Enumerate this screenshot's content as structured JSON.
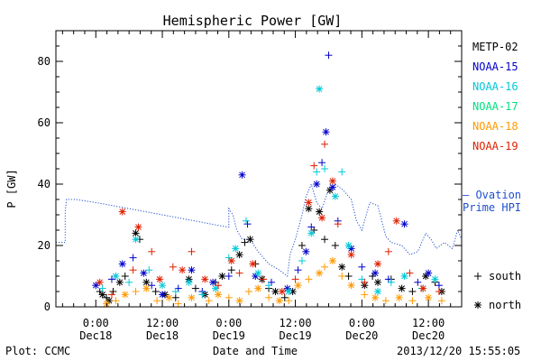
{
  "chart_data": {
    "type": "scatter",
    "title": "Hemispheric Power [GW]",
    "xlabel": "Date and Time",
    "ylabel": "P [GW]",
    "ylim": [
      0,
      90
    ],
    "xlim": [
      -0.3,
      2.75
    ],
    "yticks": [
      0,
      20,
      40,
      60,
      80
    ],
    "xticks": [
      {
        "x": 0.0,
        "time": "0:00",
        "day": "Dec18"
      },
      {
        "x": 0.5,
        "time": "12:00",
        "day": "Dec18"
      },
      {
        "x": 1.0,
        "time": "0:00",
        "day": "Dec19"
      },
      {
        "x": 1.5,
        "time": "12:00",
        "day": "Dec19"
      },
      {
        "x": 2.0,
        "time": "0:00",
        "day": "Dec20"
      },
      {
        "x": 2.5,
        "time": "12:00",
        "day": "Dec20"
      }
    ],
    "legend_position": "right",
    "symbol_legend": [
      {
        "symbol": "+",
        "label": "south"
      },
      {
        "symbol": "*",
        "label": "north"
      }
    ],
    "series": [
      {
        "name": "METP-02",
        "color": "#000000",
        "points": [
          [
            0.03,
            5,
            "+"
          ],
          [
            0.05,
            4,
            "*"
          ],
          [
            0.08,
            3,
            "+"
          ],
          [
            0.1,
            2,
            "*"
          ],
          [
            0.13,
            5,
            "+"
          ],
          [
            0.18,
            8,
            "*"
          ],
          [
            0.22,
            10,
            "+"
          ],
          [
            0.3,
            24,
            "*"
          ],
          [
            0.33,
            22,
            "+"
          ],
          [
            0.38,
            8,
            "*"
          ],
          [
            0.45,
            5,
            "+"
          ],
          [
            0.52,
            4,
            "*"
          ],
          [
            0.6,
            3,
            "+"
          ],
          [
            0.7,
            9,
            "*"
          ],
          [
            0.75,
            6,
            "+"
          ],
          [
            0.82,
            4,
            "*"
          ],
          [
            0.9,
            8,
            "+"
          ],
          [
            0.95,
            10,
            "*"
          ],
          [
            1.02,
            12,
            "+"
          ],
          [
            1.08,
            17,
            "*"
          ],
          [
            1.12,
            21,
            "+"
          ],
          [
            1.16,
            22,
            "*"
          ],
          [
            1.2,
            14,
            "+"
          ],
          [
            1.25,
            9,
            "*"
          ],
          [
            1.3,
            6,
            "+"
          ],
          [
            1.35,
            5,
            "*"
          ],
          [
            1.42,
            3,
            "+"
          ],
          [
            1.48,
            5,
            "*"
          ],
          [
            1.55,
            20,
            "+"
          ],
          [
            1.6,
            32,
            "*"
          ],
          [
            1.64,
            25,
            "+"
          ],
          [
            1.68,
            31,
            "*"
          ],
          [
            1.72,
            22,
            "+"
          ],
          [
            1.76,
            38,
            "*"
          ],
          [
            1.8,
            20,
            "+"
          ],
          [
            1.85,
            13,
            "*"
          ],
          [
            1.9,
            10,
            "+"
          ],
          [
            2.02,
            7,
            "*"
          ],
          [
            2.08,
            10,
            "+"
          ],
          [
            2.12,
            8,
            "*"
          ],
          [
            2.22,
            9,
            "+"
          ],
          [
            2.3,
            6,
            "*"
          ],
          [
            2.38,
            5,
            "+"
          ],
          [
            2.48,
            10,
            "*"
          ],
          [
            2.55,
            8,
            "+"
          ],
          [
            2.6,
            5,
            "*"
          ]
        ]
      },
      {
        "name": "NOAA-15",
        "color": "#0000cc",
        "points": [
          [
            0.0,
            7,
            "*"
          ],
          [
            0.12,
            9,
            "+"
          ],
          [
            0.2,
            14,
            "*"
          ],
          [
            0.28,
            16,
            "+"
          ],
          [
            0.36,
            11,
            "*"
          ],
          [
            0.42,
            7,
            "+"
          ],
          [
            0.5,
            4,
            "*"
          ],
          [
            0.62,
            6,
            "+"
          ],
          [
            0.72,
            12,
            "*"
          ],
          [
            0.8,
            5,
            "+"
          ],
          [
            0.88,
            8,
            "*"
          ],
          [
            1.0,
            10,
            "+"
          ],
          [
            1.1,
            43,
            "*"
          ],
          [
            1.14,
            27,
            "+"
          ],
          [
            1.2,
            10,
            "*"
          ],
          [
            1.32,
            8,
            "+"
          ],
          [
            1.44,
            6,
            "*"
          ],
          [
            1.52,
            12,
            "+"
          ],
          [
            1.58,
            18,
            "*"
          ],
          [
            1.62,
            26,
            "+"
          ],
          [
            1.66,
            40,
            "*"
          ],
          [
            1.7,
            47,
            "+"
          ],
          [
            1.73,
            57,
            "*"
          ],
          [
            1.75,
            82,
            "+"
          ],
          [
            1.78,
            39,
            "*"
          ],
          [
            1.82,
            28,
            "+"
          ],
          [
            1.92,
            19,
            "*"
          ],
          [
            2.0,
            13,
            "+"
          ],
          [
            2.1,
            11,
            "*"
          ],
          [
            2.2,
            9,
            "+"
          ],
          [
            2.32,
            27,
            "*"
          ],
          [
            2.42,
            8,
            "+"
          ],
          [
            2.5,
            11,
            "*"
          ],
          [
            2.58,
            7,
            "+"
          ]
        ]
      },
      {
        "name": "NOAA-16",
        "color": "#00c8d8",
        "points": [
          [
            0.05,
            6,
            "+"
          ],
          [
            0.15,
            10,
            "*"
          ],
          [
            0.25,
            8,
            "+"
          ],
          [
            0.3,
            22,
            "*"
          ],
          [
            0.4,
            12,
            "+"
          ],
          [
            0.5,
            7,
            "*"
          ],
          [
            0.6,
            5,
            "+"
          ],
          [
            0.7,
            8,
            "*"
          ],
          [
            0.8,
            4,
            "+"
          ],
          [
            0.9,
            6,
            "*"
          ],
          [
            1.0,
            16,
            "+"
          ],
          [
            1.05,
            19,
            "*"
          ],
          [
            1.13,
            28,
            "+"
          ],
          [
            1.22,
            11,
            "*"
          ],
          [
            1.3,
            7,
            "+"
          ],
          [
            1.45,
            5,
            "*"
          ],
          [
            1.55,
            15,
            "+"
          ],
          [
            1.62,
            24,
            "*"
          ],
          [
            1.66,
            44,
            "+"
          ],
          [
            1.68,
            71,
            "*"
          ],
          [
            1.72,
            45,
            "+"
          ],
          [
            1.8,
            36,
            "*"
          ],
          [
            1.85,
            44,
            "+"
          ],
          [
            1.9,
            20,
            "*"
          ],
          [
            2.0,
            9,
            "+"
          ],
          [
            2.12,
            5,
            "*"
          ],
          [
            2.22,
            8,
            "+"
          ],
          [
            2.32,
            10,
            "*"
          ],
          [
            2.45,
            6,
            "+"
          ],
          [
            2.55,
            9,
            "*"
          ]
        ]
      },
      {
        "name": "NOAA-17",
        "color": "#00e080",
        "points": []
      },
      {
        "name": "NOAA-18",
        "color": "#ff9900",
        "points": [
          [
            0.08,
            1,
            "*"
          ],
          [
            0.15,
            2,
            "+"
          ],
          [
            0.22,
            4,
            "*"
          ],
          [
            0.3,
            5,
            "+"
          ],
          [
            0.38,
            6,
            "*"
          ],
          [
            0.46,
            2,
            "+"
          ],
          [
            0.55,
            3,
            "*"
          ],
          [
            0.62,
            1,
            "+"
          ],
          [
            0.72,
            3,
            "*"
          ],
          [
            0.85,
            2,
            "+"
          ],
          [
            0.92,
            4,
            "*"
          ],
          [
            1.0,
            3,
            "+"
          ],
          [
            1.08,
            2,
            "*"
          ],
          [
            1.15,
            5,
            "+"
          ],
          [
            1.22,
            6,
            "*"
          ],
          [
            1.3,
            3,
            "+"
          ],
          [
            1.38,
            2,
            "*"
          ],
          [
            1.45,
            2,
            "+"
          ],
          [
            1.52,
            7,
            "*"
          ],
          [
            1.6,
            9,
            "+"
          ],
          [
            1.68,
            11,
            "*"
          ],
          [
            1.72,
            13,
            "+"
          ],
          [
            1.78,
            15,
            "*"
          ],
          [
            1.85,
            10,
            "+"
          ],
          [
            1.92,
            7,
            "*"
          ],
          [
            2.02,
            4,
            "+"
          ],
          [
            2.1,
            3,
            "*"
          ],
          [
            2.18,
            2,
            "+"
          ],
          [
            2.28,
            3,
            "*"
          ],
          [
            2.38,
            2,
            "+"
          ],
          [
            2.5,
            3,
            "*"
          ],
          [
            2.6,
            2,
            "+"
          ]
        ]
      },
      {
        "name": "NOAA-19",
        "color": "#e02000",
        "points": [
          [
            0.03,
            8,
            "*"
          ],
          [
            0.12,
            4,
            "+"
          ],
          [
            0.2,
            31,
            "*"
          ],
          [
            0.28,
            12,
            "+"
          ],
          [
            0.32,
            26,
            "*"
          ],
          [
            0.42,
            18,
            "+"
          ],
          [
            0.48,
            9,
            "*"
          ],
          [
            0.58,
            13,
            "+"
          ],
          [
            0.65,
            12,
            "*"
          ],
          [
            0.72,
            18,
            "+"
          ],
          [
            0.82,
            9,
            "*"
          ],
          [
            0.92,
            7,
            "+"
          ],
          [
            1.02,
            15,
            "*"
          ],
          [
            1.08,
            11,
            "+"
          ],
          [
            1.18,
            14,
            "*"
          ],
          [
            1.26,
            9,
            "+"
          ],
          [
            1.4,
            5,
            "*"
          ],
          [
            1.5,
            9,
            "+"
          ],
          [
            1.6,
            34,
            "*"
          ],
          [
            1.64,
            46,
            "+"
          ],
          [
            1.7,
            29,
            "*"
          ],
          [
            1.72,
            53,
            "+"
          ],
          [
            1.78,
            41,
            "*"
          ],
          [
            1.82,
            27,
            "+"
          ],
          [
            1.92,
            17,
            "*"
          ],
          [
            2.02,
            8,
            "+"
          ],
          [
            2.12,
            14,
            "*"
          ],
          [
            2.2,
            18,
            "+"
          ],
          [
            2.26,
            28,
            "*"
          ],
          [
            2.36,
            11,
            "+"
          ],
          [
            2.46,
            6,
            "*"
          ],
          [
            2.58,
            5,
            "+"
          ]
        ]
      },
      {
        "name": "Ovation Prime HPI",
        "label_lines": [
          "— Ovation",
          "Prime HPI"
        ],
        "color": "#2050d0",
        "style": "dotted-line",
        "points": [
          [
            -0.3,
            21
          ],
          [
            -0.23,
            21
          ],
          [
            -0.23,
            31
          ],
          [
            -0.22,
            35
          ],
          [
            -0.15,
            35
          ],
          [
            0.0,
            34
          ],
          [
            0.5,
            30
          ],
          [
            0.99,
            26
          ],
          [
            1.0,
            26
          ],
          [
            1.0,
            32
          ],
          [
            1.03,
            30
          ],
          [
            1.06,
            25
          ],
          [
            1.1,
            22
          ],
          [
            1.16,
            22
          ],
          [
            1.22,
            18
          ],
          [
            1.3,
            14
          ],
          [
            1.38,
            12
          ],
          [
            1.44,
            10
          ],
          [
            1.46,
            17
          ],
          [
            1.5,
            22
          ],
          [
            1.55,
            30
          ],
          [
            1.58,
            36
          ],
          [
            1.62,
            40
          ],
          [
            1.66,
            34
          ],
          [
            1.7,
            32
          ],
          [
            1.74,
            37
          ],
          [
            1.8,
            40
          ],
          [
            1.86,
            38
          ],
          [
            1.92,
            35
          ],
          [
            1.96,
            28
          ],
          [
            2.0,
            25
          ],
          [
            2.06,
            34
          ],
          [
            2.12,
            33
          ],
          [
            2.18,
            23
          ],
          [
            2.22,
            21
          ],
          [
            2.3,
            20
          ],
          [
            2.36,
            17
          ],
          [
            2.42,
            18
          ],
          [
            2.48,
            24
          ],
          [
            2.52,
            22
          ],
          [
            2.56,
            19
          ],
          [
            2.62,
            21
          ],
          [
            2.68,
            19
          ],
          [
            2.72,
            25
          ],
          [
            2.75,
            22
          ]
        ]
      }
    ]
  },
  "footer": {
    "left": "Plot: CCMC",
    "center": "Date and Time",
    "right": "2013/12/20 15:55:05"
  }
}
